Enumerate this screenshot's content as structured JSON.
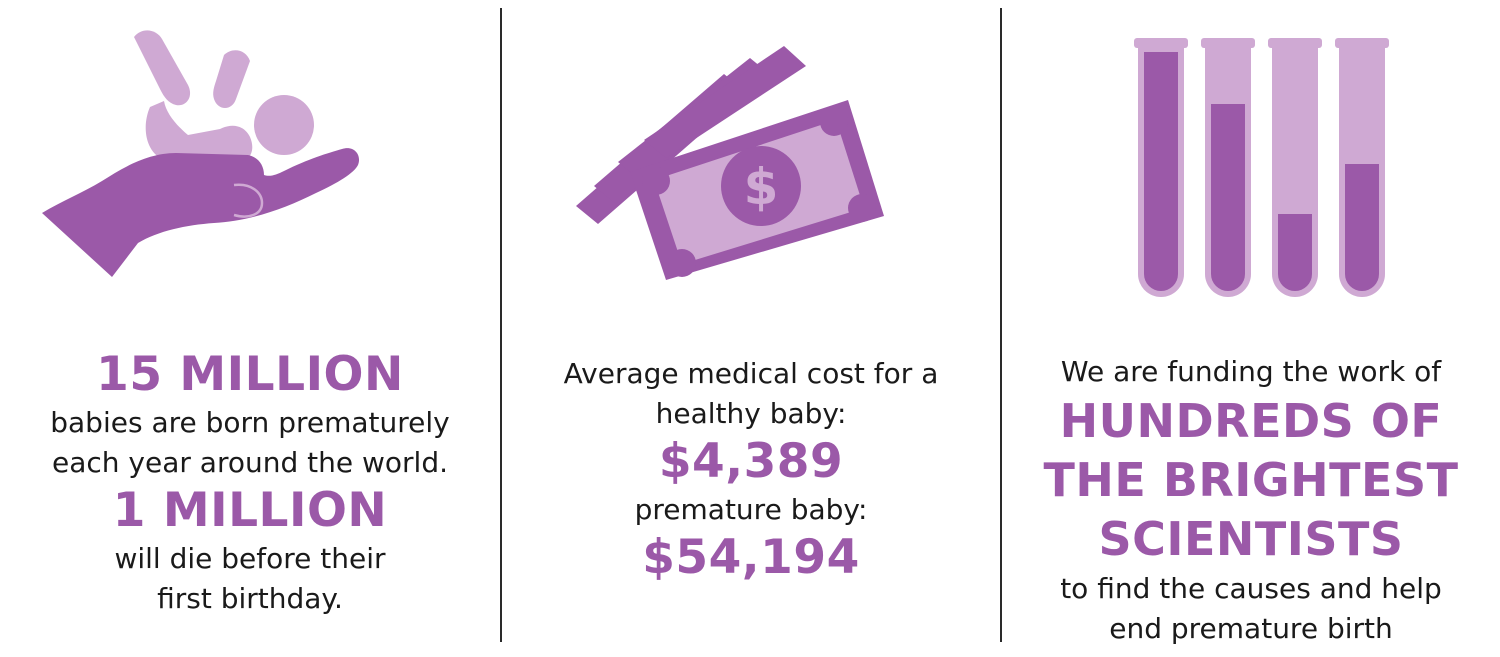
{
  "colors": {
    "accent": "#9b59a8",
    "accent_light": "#cfa9d3",
    "text": "#1a1a1a",
    "divider": "#2a2a2a"
  },
  "stats": {
    "col1": {
      "icon": "baby-in-hand-icon",
      "headline_1": "15 MILLION",
      "line_1": "babies are born prematurely",
      "line_2": "each year around the world.",
      "headline_2": "1 MILLION",
      "line_3": "will die before their",
      "line_4": "first birthday."
    },
    "col2": {
      "icon": "money-bills-icon",
      "line_1": "Average medical cost for a",
      "line_2": "healthy baby:",
      "amount_1": "$4,389",
      "line_3": "premature baby:",
      "amount_2": "$54,194"
    },
    "col3": {
      "icon": "test-tubes-icon",
      "line_1": "We are funding the work of",
      "headline_1": "HUNDREDS OF",
      "headline_2": "THE BRIGHTEST",
      "headline_3": "SCIENTISTS",
      "line_2": "to find the causes and help",
      "line_3": "end premature birth"
    }
  }
}
